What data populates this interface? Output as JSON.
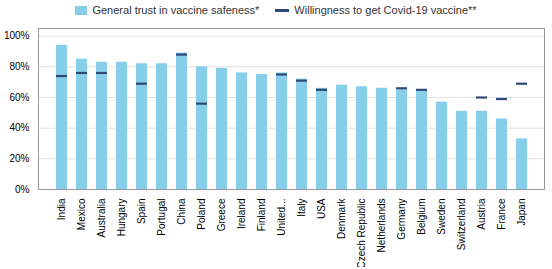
{
  "chart_data": {
    "type": "bar",
    "categories": [
      "India",
      "Mexico",
      "Australia",
      "Hungary",
      "Spain",
      "Portugal",
      "China",
      "Poland",
      "Greece",
      "Ireland",
      "Finland",
      "United...",
      "Italy",
      "USA",
      "Denmark",
      "Czech Republic",
      "Netherlands",
      "Germany",
      "Belgium",
      "Sweden",
      "Switzerland",
      "Austria",
      "France",
      "Japan"
    ],
    "series": [
      {
        "name": "General trust in vaccine safeness*",
        "type": "bar",
        "color": "#87CEEB",
        "values": [
          0.94,
          0.85,
          0.83,
          0.83,
          0.82,
          0.82,
          0.89,
          0.8,
          0.79,
          0.76,
          0.75,
          0.76,
          0.72,
          0.66,
          0.68,
          0.67,
          0.66,
          0.65,
          0.64,
          0.57,
          0.51,
          0.51,
          0.46,
          0.33
        ]
      },
      {
        "name": "Willingness to get Covid-19 vaccine**",
        "type": "tick",
        "color": "#2F4878",
        "values": [
          0.74,
          0.76,
          0.76,
          null,
          0.69,
          null,
          0.88,
          0.56,
          null,
          null,
          null,
          0.75,
          0.71,
          0.65,
          null,
          null,
          null,
          0.66,
          0.65,
          null,
          null,
          0.6,
          0.59,
          0.69
        ]
      }
    ],
    "ylim": [
      0,
      1.05
    ],
    "yticks": [
      {
        "value": 0,
        "label": "0%"
      },
      {
        "value": 0.2,
        "label": "20%"
      },
      {
        "value": 0.4,
        "label": "40%"
      },
      {
        "value": 0.6,
        "label": "60%"
      },
      {
        "value": 0.8,
        "label": "80%"
      },
      {
        "value": 1.0,
        "label": "100%"
      }
    ],
    "grid": true,
    "legend": "top"
  }
}
